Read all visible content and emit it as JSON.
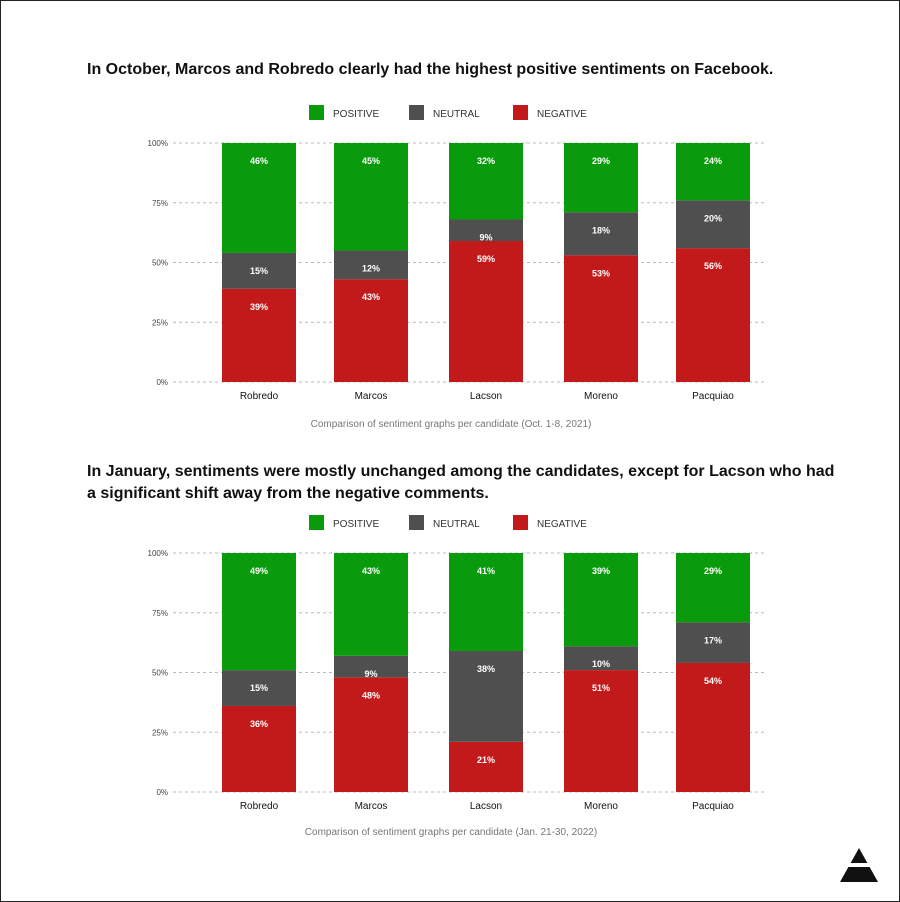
{
  "colors": {
    "positive": "#0a9b0c",
    "neutral": "#4f4f4f",
    "negative": "#c21a1a",
    "grid": "#bbbbbb",
    "axis_text": "#444444",
    "bar_label": "#ffffff"
  },
  "legend": {
    "positive": "POSITIVE",
    "neutral": "NEUTRAL",
    "negative": "NEGATIVE"
  },
  "logo_icon": "triangle-logo-icon",
  "chart_data": [
    {
      "type": "bar",
      "stacked": true,
      "title": "In October, Marcos and Robredo clearly had the highest positive sentiments on Facebook.",
      "caption": "Comparison of sentiment graphs per candidate (Oct. 1-8, 2021)",
      "categories": [
        "Robredo",
        "Marcos",
        "Lacson",
        "Moreno",
        "Pacquiao"
      ],
      "series": [
        {
          "name": "NEGATIVE",
          "values": [
            39,
            43,
            59,
            53,
            56
          ],
          "labels": [
            "39%",
            "43%",
            "59%",
            "53%",
            "56%"
          ]
        },
        {
          "name": "NEUTRAL",
          "values": [
            15,
            12,
            9,
            18,
            20
          ],
          "labels": [
            "15%",
            "12%",
            "9%",
            "18%",
            "20%"
          ]
        },
        {
          "name": "POSITIVE",
          "values": [
            46,
            45,
            32,
            29,
            24
          ],
          "labels": [
            "46%",
            "45%",
            "32%",
            "29%",
            "24%"
          ]
        }
      ],
      "y_ticks": [
        "0%",
        "25%",
        "50%",
        "75%",
        "100%"
      ],
      "ylim": [
        0,
        100
      ],
      "grid": true,
      "legend_position": "top-center"
    },
    {
      "type": "bar",
      "stacked": true,
      "title": "In January, sentiments were mostly unchanged among the candidates, except for Lacson who had a significant shift away from the negative comments.",
      "caption": "Comparison of sentiment graphs per candidate (Jan. 21-30, 2022)",
      "categories": [
        "Robredo",
        "Marcos",
        "Lacson",
        "Moreno",
        "Pacquiao"
      ],
      "series": [
        {
          "name": "NEGATIVE",
          "values": [
            36,
            48,
            21,
            51,
            54
          ],
          "labels": [
            "36%",
            "48%",
            "21%",
            "51%",
            "54%"
          ]
        },
        {
          "name": "NEUTRAL",
          "values": [
            15,
            9,
            38,
            10,
            17
          ],
          "labels": [
            "15%",
            "9%",
            "38%",
            "10%",
            "17%"
          ]
        },
        {
          "name": "POSITIVE",
          "values": [
            49,
            43,
            41,
            39,
            29
          ],
          "labels": [
            "49%",
            "43%",
            "41%",
            "39%",
            "29%"
          ]
        }
      ],
      "y_ticks": [
        "0%",
        "25%",
        "50%",
        "75%",
        "100%"
      ],
      "ylim": [
        0,
        100
      ],
      "grid": true,
      "legend_position": "top-center"
    }
  ]
}
